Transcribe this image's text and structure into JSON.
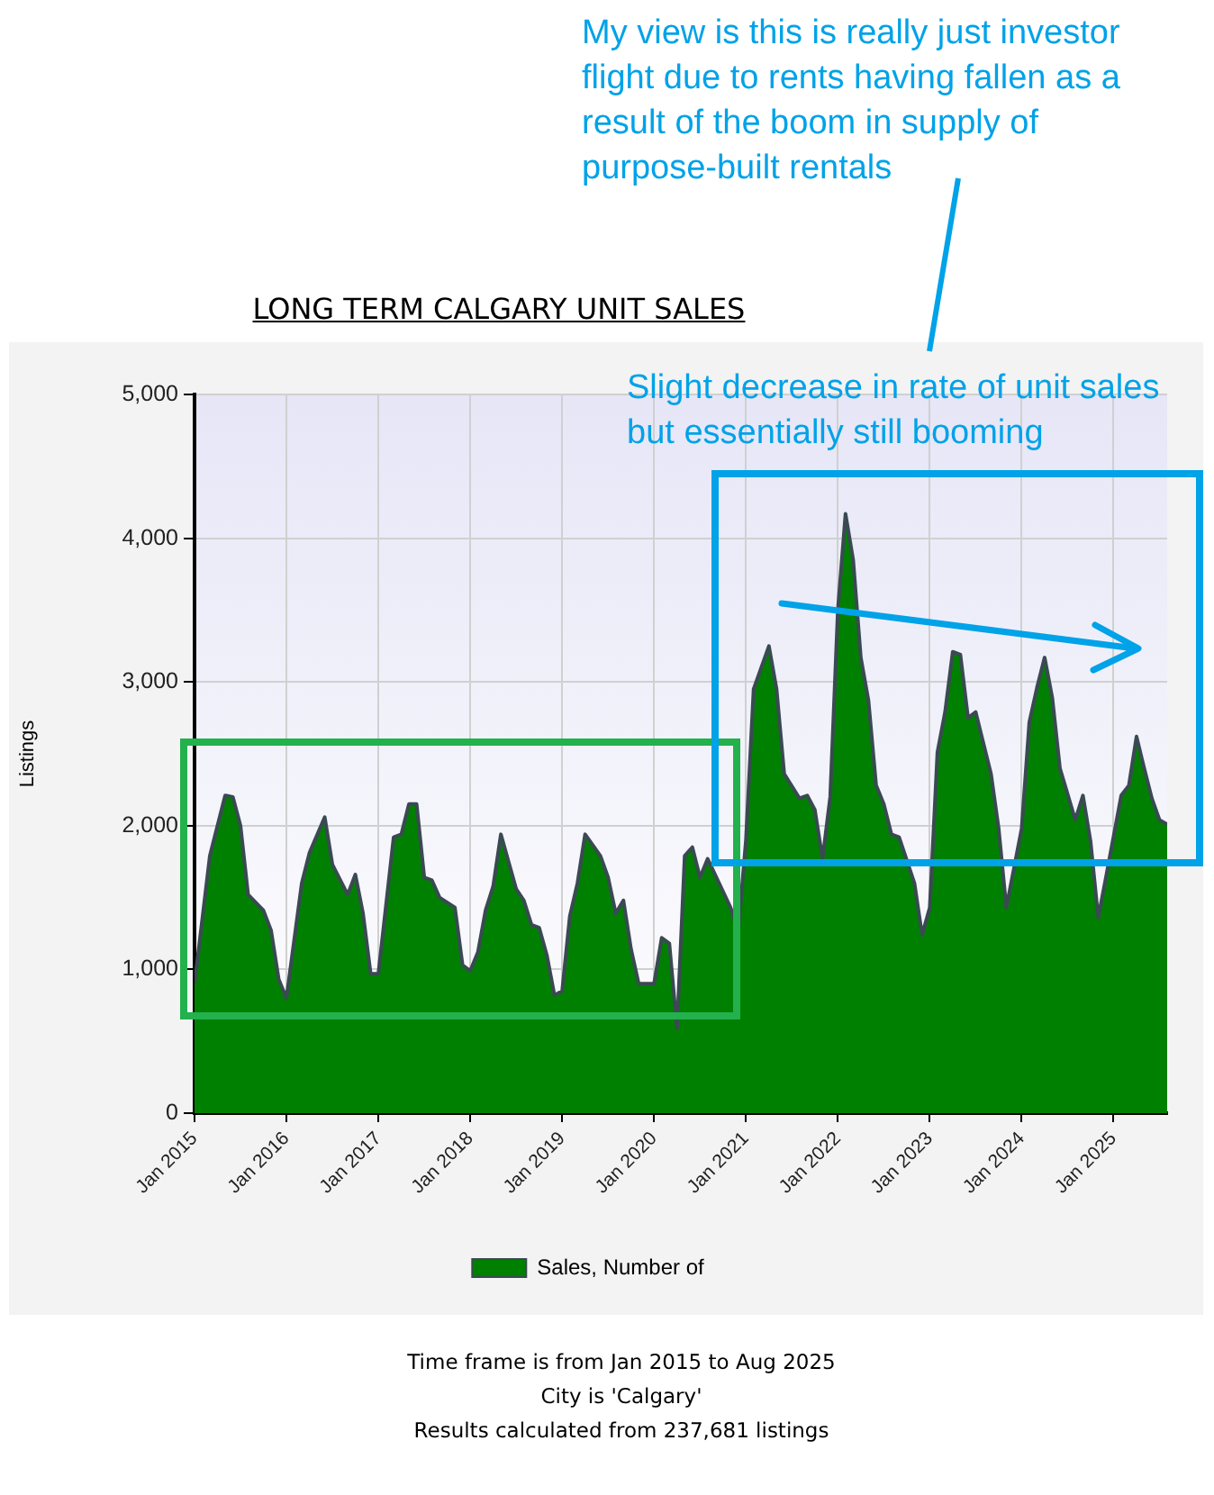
{
  "chart_data": {
    "type": "area",
    "title": "LONG TERM CALGARY UNIT SALES",
    "ylabel": "Listings",
    "x": [
      "2015-01",
      "2015-03",
      "2015-05",
      "2015-06",
      "2015-07",
      "2015-08",
      "2015-10",
      "2015-11",
      "2015-12",
      "2016-01",
      "2016-03",
      "2016-04",
      "2016-06",
      "2016-07",
      "2016-09",
      "2016-10",
      "2016-11",
      "2016-12",
      "2017-01",
      "2017-03",
      "2017-04",
      "2017-05",
      "2017-06",
      "2017-07",
      "2017-08",
      "2017-09",
      "2017-11",
      "2017-12",
      "2018-01",
      "2018-02",
      "2018-03",
      "2018-04",
      "2018-05",
      "2018-07",
      "2018-08",
      "2018-09",
      "2018-10",
      "2018-11",
      "2018-12",
      "2019-01",
      "2019-02",
      "2019-03",
      "2019-04",
      "2019-06",
      "2019-07",
      "2019-08",
      "2019-09",
      "2019-10",
      "2019-11",
      "2020-01",
      "2020-02",
      "2020-03",
      "2020-04",
      "2020-05",
      "2020-06",
      "2020-07",
      "2020-08",
      "2020-11",
      "2020-12",
      "2021-01",
      "2021-02",
      "2021-04",
      "2021-05",
      "2021-06",
      "2021-08",
      "2021-09",
      "2021-10",
      "2021-11",
      "2021-12",
      "2022-01",
      "2022-02",
      "2022-03",
      "2022-04",
      "2022-05",
      "2022-06",
      "2022-07",
      "2022-08",
      "2022-09",
      "2022-11",
      "2022-12",
      "2023-01",
      "2023-02",
      "2023-03",
      "2023-04",
      "2023-05",
      "2023-06",
      "2023-07",
      "2023-09",
      "2023-10",
      "2023-11",
      "2024-01",
      "2024-02",
      "2024-03",
      "2024-04",
      "2024-05",
      "2024-06",
      "2024-08",
      "2024-09",
      "2024-10",
      "2024-11",
      "2024-12",
      "2025-02",
      "2025-03",
      "2025-04",
      "2025-05",
      "2025-06",
      "2025-07",
      "2025-08"
    ],
    "series": [
      {
        "name": "Sales, Number of",
        "color": "#008000",
        "values": [
          900,
          1790,
          2210,
          2200,
          2000,
          1520,
          1410,
          1270,
          930,
          800,
          1600,
          1810,
          2060,
          1730,
          1520,
          1660,
          1390,
          970,
          970,
          1920,
          1940,
          2150,
          2150,
          1640,
          1620,
          1500,
          1430,
          1030,
          990,
          1120,
          1410,
          1580,
          1940,
          1560,
          1480,
          1310,
          1290,
          1100,
          820,
          850,
          1370,
          1600,
          1940,
          1790,
          1640,
          1390,
          1480,
          1140,
          900,
          900,
          1220,
          1180,
          590,
          1790,
          1850,
          1640,
          1770,
          1430,
          1270,
          1900,
          2950,
          3250,
          2950,
          2360,
          2190,
          2210,
          2110,
          1770,
          2200,
          3500,
          4170,
          3850,
          3170,
          2870,
          2280,
          2150,
          1940,
          1920,
          1600,
          1240,
          1430,
          2510,
          2790,
          3210,
          3190,
          2750,
          2790,
          2360,
          1980,
          1430,
          1980,
          2720,
          2960,
          3170,
          2890,
          2400,
          2040,
          2210,
          1890,
          1360,
          1640,
          2210,
          2280,
          2620,
          2400,
          2190,
          2040,
          2010
        ]
      }
    ],
    "xlim": [
      "2015-01",
      "2025-08"
    ],
    "xticks": [
      {
        "value": "2015-01",
        "label": "Jan 2015"
      },
      {
        "value": "2016-01",
        "label": "Jan 2016"
      },
      {
        "value": "2017-01",
        "label": "Jan 2017"
      },
      {
        "value": "2018-01",
        "label": "Jan 2018"
      },
      {
        "value": "2019-01",
        "label": "Jan 2019"
      },
      {
        "value": "2020-01",
        "label": "Jan 2020"
      },
      {
        "value": "2021-01",
        "label": "Jan 2021"
      },
      {
        "value": "2022-01",
        "label": "Jan 2022"
      },
      {
        "value": "2023-01",
        "label": "Jan 2023"
      },
      {
        "value": "2024-01",
        "label": "Jan 2024"
      },
      {
        "value": "2025-01",
        "label": "Jan 2025"
      }
    ],
    "ylim": [
      0,
      5000
    ],
    "yticks": [
      0,
      {
        "value": 1000,
        "label": "1,000"
      },
      {
        "value": 2000,
        "label": "2,000"
      },
      {
        "value": 3000,
        "label": "3,000"
      },
      {
        "value": 4000,
        "label": "4,000"
      },
      {
        "value": 5000,
        "label": "5,000"
      }
    ],
    "grid": true,
    "legend": "bottom",
    "marker": "none",
    "annotations": [
      "My view is this is really just investor flight due to rents having fallen as a result of the boom in supply of purpose-built rentals",
      "Slight decrease in rate of unit sales but essentially still booming",
      "Time frame is from Jan 2015 to Aug 2025",
      "City is 'Calgary'",
      "Results calculated from 237,681 listings"
    ]
  }
}
